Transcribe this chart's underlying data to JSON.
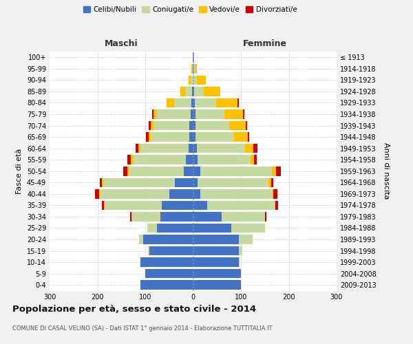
{
  "age_groups": [
    "0-4",
    "5-9",
    "10-14",
    "15-19",
    "20-24",
    "25-29",
    "30-34",
    "35-39",
    "40-44",
    "45-49",
    "50-54",
    "55-59",
    "60-64",
    "65-69",
    "70-74",
    "75-79",
    "80-84",
    "85-89",
    "90-94",
    "95-99",
    "100+"
  ],
  "birth_years": [
    "2009-2013",
    "2004-2008",
    "1999-2003",
    "1994-1998",
    "1989-1993",
    "1984-1988",
    "1979-1983",
    "1974-1978",
    "1969-1973",
    "1964-1968",
    "1959-1963",
    "1954-1958",
    "1949-1953",
    "1944-1948",
    "1939-1943",
    "1934-1938",
    "1929-1933",
    "1924-1928",
    "1919-1923",
    "1914-1918",
    "≤ 1913"
  ],
  "males": {
    "celibi": [
      110,
      100,
      110,
      92,
      105,
      75,
      68,
      65,
      50,
      38,
      20,
      15,
      10,
      8,
      8,
      5,
      3,
      2,
      0,
      1,
      1
    ],
    "coniugati": [
      0,
      0,
      0,
      2,
      8,
      20,
      60,
      120,
      145,
      150,
      115,
      110,
      100,
      80,
      75,
      70,
      35,
      15,
      5,
      1,
      0
    ],
    "vedovi": [
      0,
      0,
      0,
      0,
      0,
      0,
      1,
      1,
      2,
      2,
      3,
      5,
      5,
      5,
      5,
      8,
      18,
      10,
      5,
      1,
      0
    ],
    "divorziati": [
      0,
      0,
      0,
      0,
      0,
      1,
      3,
      5,
      8,
      5,
      8,
      8,
      5,
      5,
      5,
      3,
      0,
      0,
      0,
      0,
      0
    ]
  },
  "females": {
    "nubili": [
      100,
      100,
      95,
      95,
      95,
      80,
      60,
      30,
      15,
      10,
      15,
      10,
      8,
      5,
      5,
      5,
      3,
      2,
      0,
      1,
      1
    ],
    "coniugate": [
      0,
      0,
      2,
      8,
      30,
      70,
      90,
      140,
      150,
      148,
      150,
      110,
      100,
      80,
      70,
      60,
      45,
      20,
      8,
      2,
      0
    ],
    "vedove": [
      0,
      0,
      0,
      0,
      0,
      0,
      1,
      2,
      3,
      5,
      8,
      8,
      18,
      30,
      35,
      40,
      45,
      35,
      18,
      5,
      1
    ],
    "divorziate": [
      0,
      0,
      0,
      0,
      0,
      1,
      2,
      5,
      8,
      5,
      10,
      5,
      8,
      2,
      3,
      2,
      2,
      0,
      0,
      0,
      0
    ]
  },
  "colors": {
    "celibi": "#4472c4",
    "coniugati": "#c5d9a0",
    "vedovi": "#ffc000",
    "divorziati": "#cc0000"
  },
  "title": "Popolazione per età, sesso e stato civile - 2014",
  "subtitle": "COMUNE DI CASAL VELINO (SA) - Dati ISTAT 1° gennaio 2014 - Elaborazione TUTTITALIA.IT",
  "xlabel_left": "Maschi",
  "xlabel_right": "Femmine",
  "ylabel_left": "Fasce di età",
  "ylabel_right": "Anni di nascita",
  "xlim": 300,
  "bg_color": "#f0f0f0",
  "plot_bg": "#ffffff",
  "grid_color": "#cccccc",
  "legend_labels": [
    "Celibi/Nubili",
    "Coniugati/e",
    "Vedovi/e",
    "Divorziati/e"
  ]
}
